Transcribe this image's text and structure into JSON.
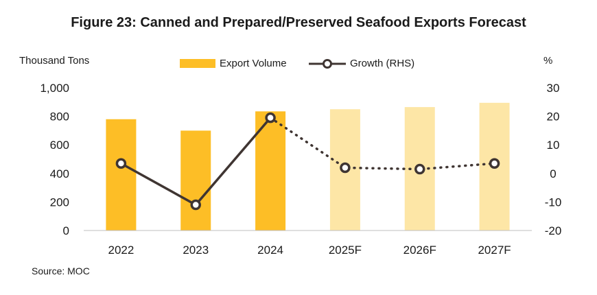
{
  "chart_data": {
    "type": "bar",
    "title": "Figure 23: Canned and Prepared/Preserved Seafood Exports Forecast",
    "ylabel_left": "Thousand Tons",
    "ylabel_right": "%",
    "source": "Source: MOC",
    "categories": [
      "2022",
      "2023",
      "2024",
      "2025F",
      "2026F",
      "2027F"
    ],
    "series": [
      {
        "name": "Export Volume",
        "kind": "bar",
        "axis": "left",
        "values": [
          780,
          700,
          835,
          850,
          865,
          895
        ]
      },
      {
        "name": "Growth (RHS)",
        "kind": "line",
        "axis": "right",
        "values": [
          3.5,
          -11,
          19.5,
          2,
          1.5,
          3.5
        ]
      }
    ],
    "forecast_from_index": 3,
    "ylim_left": [
      0,
      1000
    ],
    "yticks_left": [
      "0",
      "200",
      "400",
      "600",
      "800",
      "1,000"
    ],
    "ylim_right": [
      -20,
      30
    ],
    "yticks_right": [
      "-20",
      "-10",
      "0",
      "10",
      "20",
      "30"
    ],
    "legend_position": "top",
    "grid": false,
    "colors": {
      "bar_actual": "#FDBE26",
      "bar_forecast": "#FDE6A6",
      "line": "#3F3532",
      "marker_fill": "#FFFFFF"
    }
  }
}
